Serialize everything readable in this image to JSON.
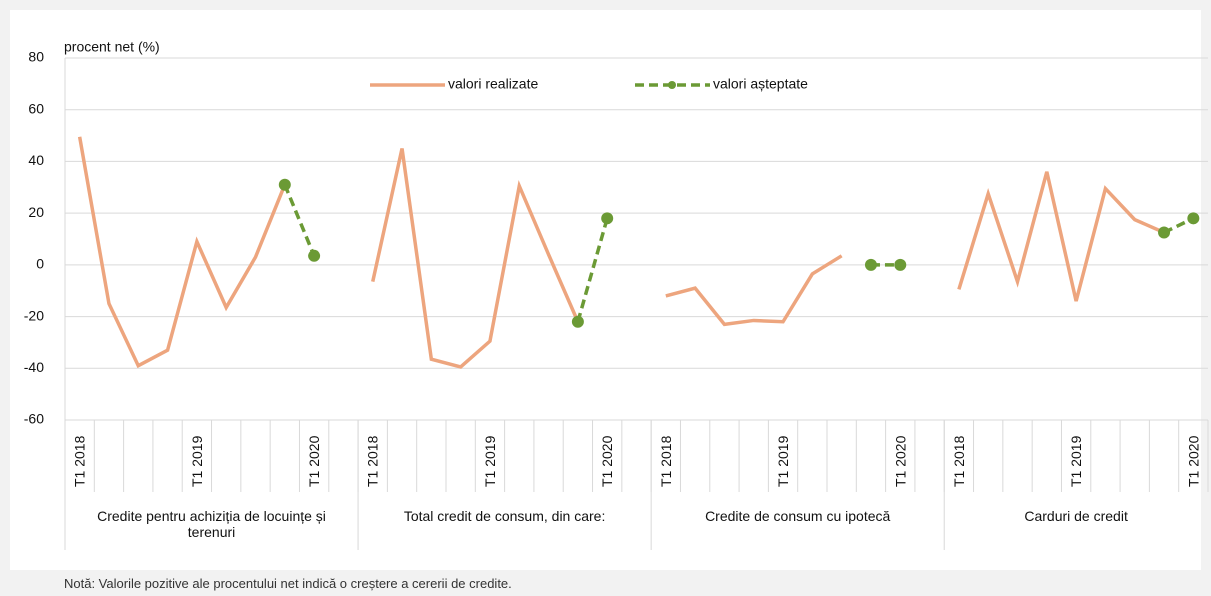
{
  "chart_data": {
    "type": "line",
    "y_label": "procent net (%)",
    "note": "Notă: Valorile pozitive ale procentului net indică o creștere a cererii de credite.",
    "categories": [
      "T1 2018",
      null,
      null,
      null,
      "T1 2019",
      null,
      null,
      null,
      "T1 2020",
      null,
      "T1 2018",
      null,
      null,
      null,
      "T1 2019",
      null,
      null,
      null,
      "T1 2020",
      null,
      "T1 2018",
      null,
      null,
      null,
      "T1 2019",
      null,
      null,
      null,
      "T1 2020",
      null,
      "T1 2018",
      null,
      null,
      null,
      "T1 2019",
      null,
      null,
      null,
      "T1 2020"
    ],
    "groups": [
      "Credite pentru achiziția de locuințe și terenuri",
      "Total credit de consum, din care:",
      "Credite de consum cu ipotecă",
      "Carduri de credit"
    ],
    "series": [
      {
        "name": "valori realizate",
        "color": "#eda57e",
        "dashed": false,
        "markers": false,
        "values": [
          49.5,
          -15,
          -39,
          -33,
          9,
          -16.5,
          3,
          31,
          null,
          null,
          -6.5,
          45,
          -36.5,
          -39.5,
          -29.5,
          30.5,
          4,
          -22,
          null,
          null,
          -12,
          -9,
          -23,
          -21.5,
          -22,
          -3.5,
          3.5,
          null,
          null,
          null,
          -9.5,
          27.5,
          -6.5,
          36,
          -14,
          29.5,
          17.5,
          12.5,
          null
        ]
      },
      {
        "name": "valori așteptate",
        "color": "#6b9a35",
        "dashed": true,
        "markers": true,
        "values": [
          null,
          null,
          null,
          null,
          null,
          null,
          null,
          31,
          3.5,
          null,
          null,
          null,
          null,
          null,
          null,
          null,
          null,
          -22,
          18,
          null,
          null,
          null,
          null,
          null,
          null,
          null,
          null,
          0,
          0,
          null,
          null,
          null,
          null,
          null,
          null,
          null,
          null,
          12.5,
          18
        ]
      }
    ],
    "ylim": [
      -60,
      80
    ],
    "yticks": [
      -60,
      -40,
      -20,
      0,
      20,
      40,
      60,
      80
    ],
    "grid": true
  }
}
